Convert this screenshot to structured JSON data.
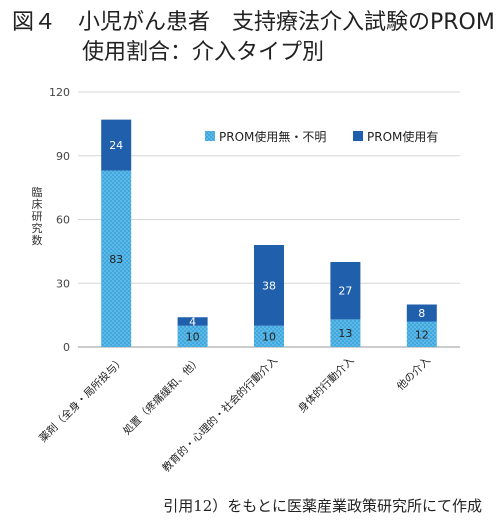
{
  "title": {
    "line1": "図４　小児がん患者　支持療法介入試験のPROM",
    "line2": "使用割合：介入タイプ別"
  },
  "source_note": "引用12）をもとに医薬産業政策研究所にて作成",
  "colors": {
    "without": "#3fa8df",
    "with": "#1f5fab"
  },
  "chart_data": {
    "type": "bar",
    "stacked": true,
    "categories": [
      "薬剤（全身・局所投与）",
      "処置（疼痛緩和、他）",
      "教育的・心理的・社会的行動介入",
      "身体的行動介入",
      "他の介入"
    ],
    "series": [
      {
        "name": "PROM使用無・不明",
        "values": [
          83,
          10,
          10,
          13,
          12
        ]
      },
      {
        "name": "PROM使用有",
        "values": [
          24,
          4,
          38,
          27,
          8
        ]
      }
    ],
    "ylabel": "臨床研究数",
    "ylim": [
      0,
      120
    ],
    "yticks": [
      0,
      30,
      60,
      90,
      120
    ],
    "grid": true,
    "legend_position": "top-right"
  }
}
